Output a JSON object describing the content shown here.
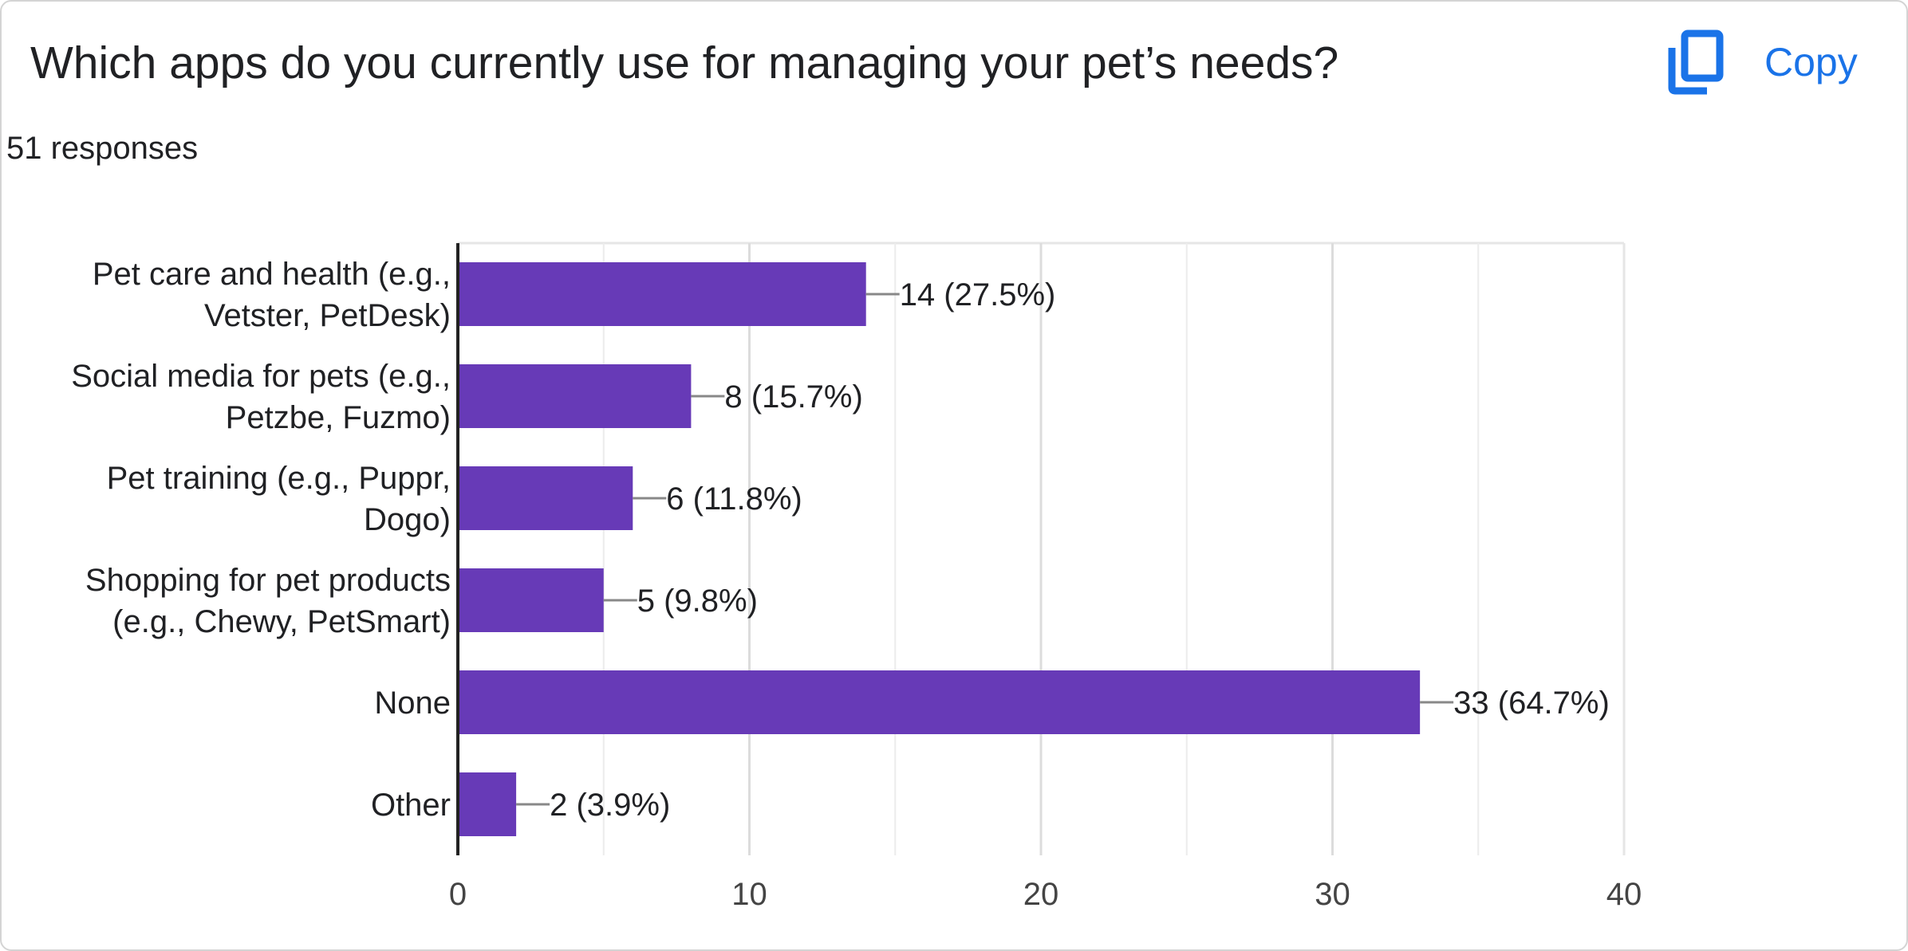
{
  "question": {
    "title": "Which apps do you currently use for managing your pet’s needs?",
    "responses": "51 responses"
  },
  "toolbar": {
    "copy_label": "Copy",
    "copy_icon": "copy-icon"
  },
  "colors": {
    "bar": "#673ab7",
    "accent": "#1a73e8",
    "grid": "#e6e6e6",
    "axis": "#222222"
  },
  "chart_data": {
    "type": "bar",
    "orientation": "horizontal",
    "categories": [
      [
        "Pet care and health (e.g.,",
        "Vetster, PetDesk)"
      ],
      [
        "Social media for pets (e.g.,",
        "Petzbe, Fuzmo)"
      ],
      [
        "Pet training (e.g., Puppr,",
        "Dogo)"
      ],
      [
        "Shopping for pet products",
        "(e.g., Chewy, PetSmart)"
      ],
      [
        "None"
      ],
      [
        "Other"
      ]
    ],
    "values": [
      14,
      8,
      6,
      5,
      33,
      2
    ],
    "value_labels": [
      "14 (27.5%)",
      "8 (15.7%)",
      "6 (11.8%)",
      "5 (9.8%)",
      "33 (64.7%)",
      "2 (3.9%)"
    ],
    "xlim": [
      0,
      40
    ],
    "xticks": [
      0,
      10,
      20,
      30,
      40
    ],
    "grid": true,
    "legend": "none"
  }
}
